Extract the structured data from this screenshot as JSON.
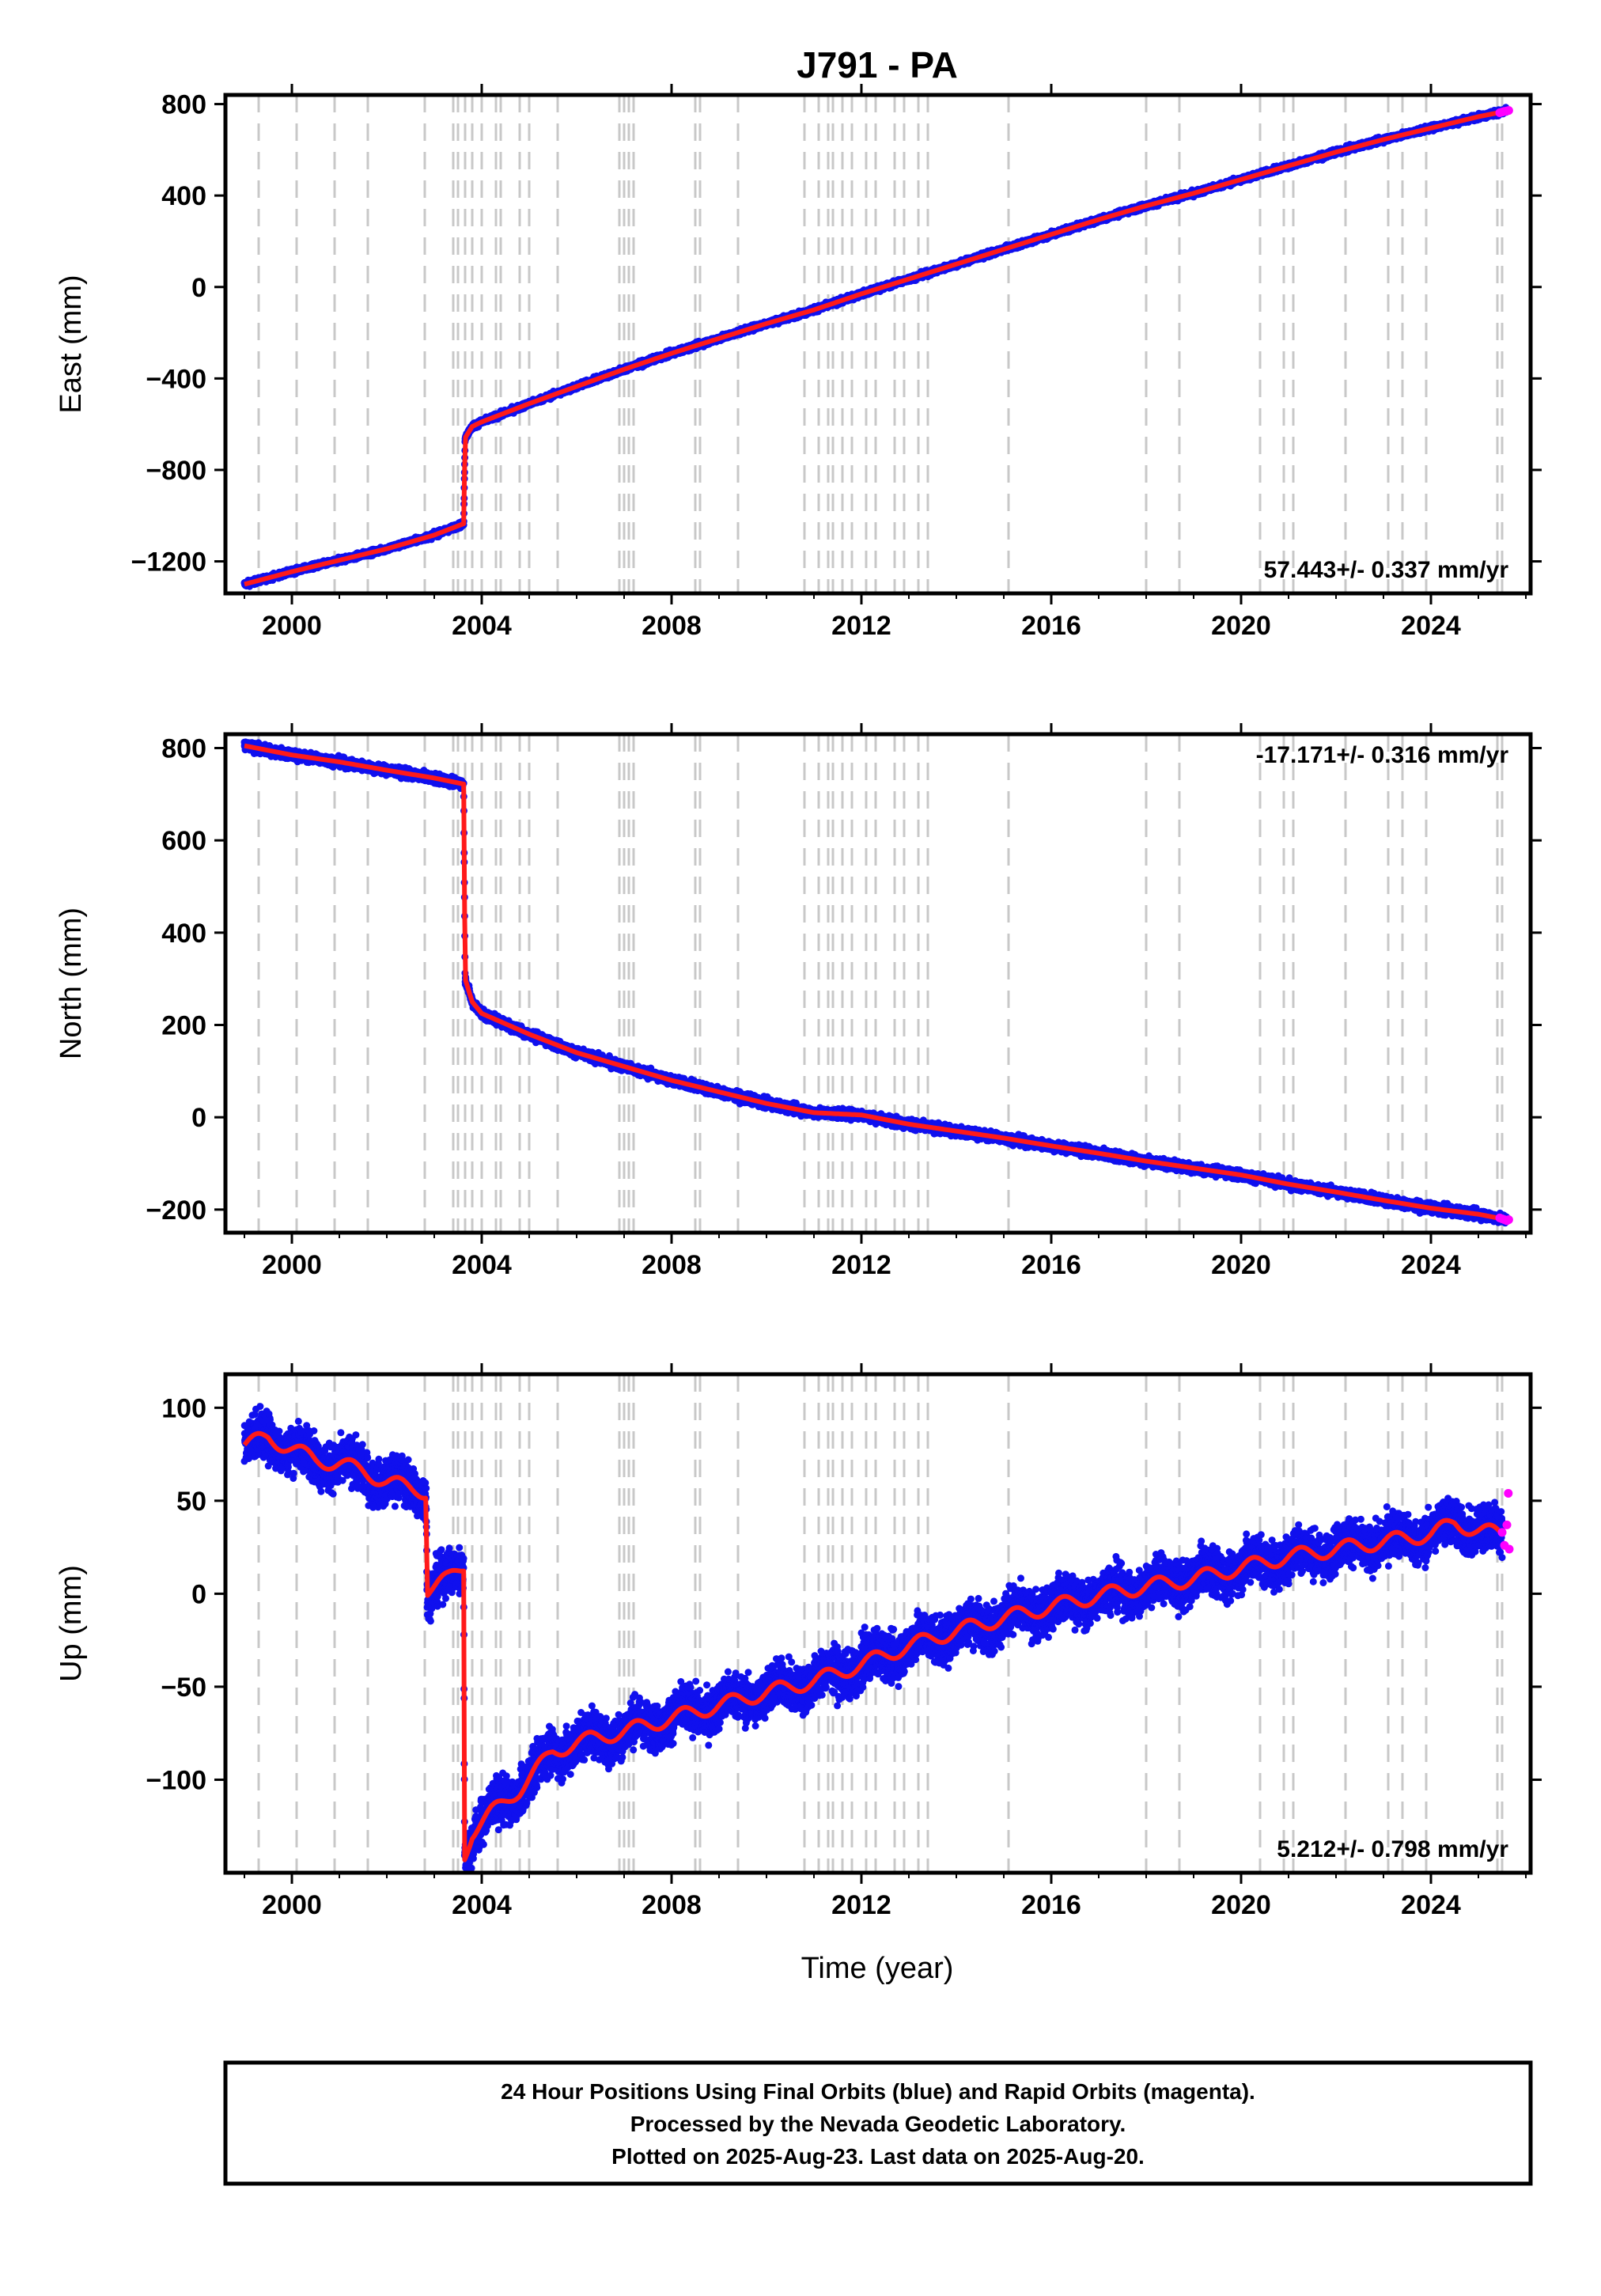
{
  "title": "J791 - PA",
  "x_axis_label": "Time (year)",
  "footer": [
    "24 Hour Positions Using Final Orbits (blue) and Rapid Orbits (magenta).",
    "Processed by the Nevada Geodetic Laboratory.",
    "Plotted on 2025-Aug-23. Last data on 2025-Aug-20."
  ],
  "colors": {
    "final_orbits": "#1010ee",
    "rapid_orbits": "#ff00ff",
    "model": "#ff1a1a",
    "event_lines": "#c8c8c8"
  },
  "chart_data": [
    {
      "type": "scatter",
      "panel": "east",
      "ylabel": "East (mm)",
      "rate_text": "57.443+/- 0.337 mm/yr",
      "rate_position": "bottom-right",
      "xlim": [
        1998.6,
        2026.1
      ],
      "ylim": [
        -1340,
        840
      ],
      "xticks": [
        2000,
        2004,
        2008,
        2012,
        2016,
        2020,
        2024
      ],
      "yticks": [
        -1200,
        -800,
        -400,
        0,
        400,
        800
      ],
      "ytick_labels": [
        "−1200",
        "−800",
        "−400",
        "0",
        "400",
        "800"
      ],
      "x": [
        1999.0,
        2000.0,
        2001.0,
        2002.0,
        2003.0,
        2003.62,
        2003.65,
        2003.8,
        2004.0,
        2005.0,
        2006.0,
        2007.0,
        2008.0,
        2009.0,
        2010.0,
        2011.0,
        2012.0,
        2013.0,
        2014.0,
        2015.0,
        2016.0,
        2017.0,
        2018.0,
        2019.0,
        2020.0,
        2021.0,
        2022.0,
        2023.0,
        2024.0,
        2025.0,
        2025.6
      ],
      "y": [
        -1300,
        -1245,
        -1195,
        -1145,
        -1085,
        -1035,
        -660,
        -610,
        -590,
        -510,
        -435,
        -360,
        -290,
        -225,
        -160,
        -100,
        -30,
        35,
        100,
        165,
        230,
        295,
        355,
        410,
        470,
        530,
        590,
        645,
        695,
        745,
        770
      ],
      "rapid_x": [
        2025.45,
        2025.5,
        2025.55,
        2025.6,
        2025.64
      ],
      "rapid_y": [
        762,
        765,
        768,
        770,
        772
      ],
      "noise": 6
    },
    {
      "type": "scatter",
      "panel": "north",
      "ylabel": "North (mm)",
      "rate_text": "-17.171+/- 0.316 mm/yr",
      "rate_position": "top-right",
      "xlim": [
        1998.6,
        2026.1
      ],
      "ylim": [
        -250,
        830
      ],
      "xticks": [
        2000,
        2004,
        2008,
        2012,
        2016,
        2020,
        2024
      ],
      "yticks": [
        -200,
        0,
        200,
        400,
        600,
        800
      ],
      "ytick_labels": [
        "−200",
        "0",
        "200",
        "400",
        "600",
        "800"
      ],
      "x": [
        1999.0,
        2000.0,
        2001.0,
        2002.0,
        2003.0,
        2003.62,
        2003.65,
        2003.8,
        2004.0,
        2005.0,
        2006.0,
        2007.0,
        2008.0,
        2009.0,
        2010.0,
        2011.0,
        2012.0,
        2013.0,
        2014.0,
        2015.0,
        2016.0,
        2017.0,
        2018.0,
        2019.0,
        2020.0,
        2021.0,
        2022.0,
        2023.0,
        2024.0,
        2025.0,
        2025.6
      ],
      "y": [
        805,
        785,
        770,
        752,
        735,
        722,
        300,
        250,
        225,
        180,
        140,
        110,
        80,
        55,
        30,
        10,
        5,
        -15,
        -30,
        -45,
        -62,
        -78,
        -95,
        -110,
        -125,
        -145,
        -162,
        -180,
        -197,
        -210,
        -222
      ],
      "rapid_x": [
        2025.45,
        2025.5,
        2025.55,
        2025.6,
        2025.64
      ],
      "rapid_y": [
        -218,
        -220,
        -222,
        -224,
        -222
      ],
      "noise": 5
    },
    {
      "type": "scatter",
      "panel": "up",
      "ylabel": "Up (mm)",
      "rate_text": "5.212+/- 0.798 mm/yr",
      "rate_position": "bottom-right",
      "xlim": [
        1998.6,
        2026.1
      ],
      "ylim": [
        -150,
        118
      ],
      "xticks": [
        2000,
        2004,
        2008,
        2012,
        2016,
        2020,
        2024
      ],
      "yticks": [
        -100,
        -50,
        0,
        50,
        100
      ],
      "ytick_labels": [
        "−100",
        "−50",
        "0",
        "50",
        "100"
      ],
      "x": [
        1999.0,
        1999.5,
        2000.0,
        2000.5,
        2001.0,
        2001.5,
        2002.0,
        2002.5,
        2002.83,
        2002.85,
        2003.0,
        2003.3,
        2003.62,
        2003.64,
        2003.8,
        2004.2,
        2004.8,
        2005.5,
        2006.0,
        2007.0,
        2008.0,
        2009.0,
        2010.0,
        2011.0,
        2012.0,
        2013.0,
        2014.0,
        2015.0,
        2016.0,
        2017.0,
        2018.0,
        2019.0,
        2020.0,
        2021.0,
        2022.0,
        2023.0,
        2024.0,
        2024.5,
        2025.0,
        2025.5
      ],
      "y": [
        80,
        84,
        78,
        72,
        70,
        66,
        60,
        57,
        55,
        2,
        4,
        8,
        15,
        -140,
        -128,
        -118,
        -105,
        -85,
        -80,
        -74,
        -67,
        -60,
        -53,
        -47,
        -38,
        -28,
        -20,
        -13,
        -7,
        -1,
        4,
        8,
        14,
        20,
        24,
        28,
        32,
        38,
        34,
        32
      ],
      "rapid_x": [
        2025.5,
        2025.55,
        2025.6,
        2025.63,
        2025.65
      ],
      "rapid_y": [
        33,
        26,
        37,
        54,
        24
      ],
      "noise": 6,
      "seasonal_amp": 4
    }
  ]
}
